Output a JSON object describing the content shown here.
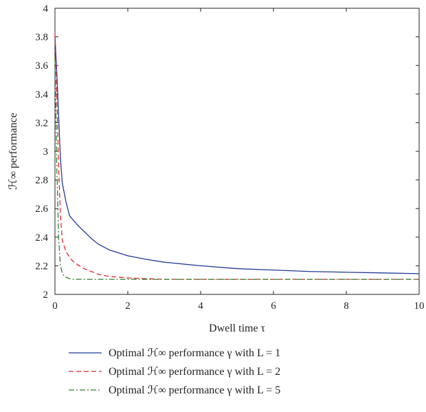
{
  "chart_data": {
    "type": "line",
    "xlabel": "Dwell time τ",
    "ylabel": "ℋ∞ performance",
    "xlim": [
      0,
      10
    ],
    "ylim": [
      2,
      4
    ],
    "x_ticks": [
      "0",
      "2",
      "4",
      "6",
      "8",
      "10"
    ],
    "y_ticks": [
      "2",
      "2.2",
      "2.4",
      "2.6",
      "2.8",
      "3",
      "3.2",
      "3.4",
      "3.6",
      "3.8",
      "4"
    ],
    "grid": false,
    "legend_position": "bottom",
    "series": [
      {
        "name": "Optimal ℋ∞ performance γ with L = 1",
        "color": "#1f3a93",
        "dash": "solid",
        "x": [
          0,
          0.05,
          0.1,
          0.15,
          0.2,
          0.3,
          0.4,
          0.5,
          0.6,
          0.8,
          1.0,
          1.2,
          1.5,
          2.0,
          2.5,
          3.0,
          4.0,
          5.0,
          6.0,
          7.0,
          8.0,
          9.0,
          10.0
        ],
        "y": [
          3.8,
          3.55,
          3.25,
          2.95,
          2.78,
          2.65,
          2.55,
          2.52,
          2.49,
          2.44,
          2.39,
          2.35,
          2.31,
          2.27,
          2.245,
          2.225,
          2.2,
          2.18,
          2.17,
          2.16,
          2.155,
          2.15,
          2.145
        ]
      },
      {
        "name": "Optimal ℋ∞ performance γ with L = 2",
        "color": "#e0262b",
        "dash": "dashed",
        "x": [
          0,
          0.05,
          0.1,
          0.15,
          0.2,
          0.3,
          0.4,
          0.5,
          0.6,
          0.8,
          1.0,
          1.2,
          1.5,
          2.0,
          2.5,
          3.0,
          4.0,
          6.0,
          8.0,
          10.0
        ],
        "y": [
          3.82,
          3.4,
          2.9,
          2.55,
          2.38,
          2.3,
          2.26,
          2.23,
          2.21,
          2.18,
          2.16,
          2.14,
          2.125,
          2.115,
          2.11,
          2.105,
          2.105,
          2.105,
          2.105,
          2.105
        ]
      },
      {
        "name": "Optimal ℋ∞ performance γ with L = 5",
        "color": "#2e7d32",
        "dash": "dashdot",
        "x": [
          0,
          0.05,
          0.1,
          0.15,
          0.2,
          0.25,
          0.3,
          0.4,
          0.5,
          0.6,
          1.0,
          2.0,
          4.0,
          6.0,
          8.0,
          10.0
        ],
        "y": [
          3.65,
          2.9,
          2.4,
          2.2,
          2.15,
          2.13,
          2.12,
          2.11,
          2.105,
          2.105,
          2.105,
          2.105,
          2.105,
          2.105,
          2.105,
          2.105
        ]
      }
    ]
  }
}
